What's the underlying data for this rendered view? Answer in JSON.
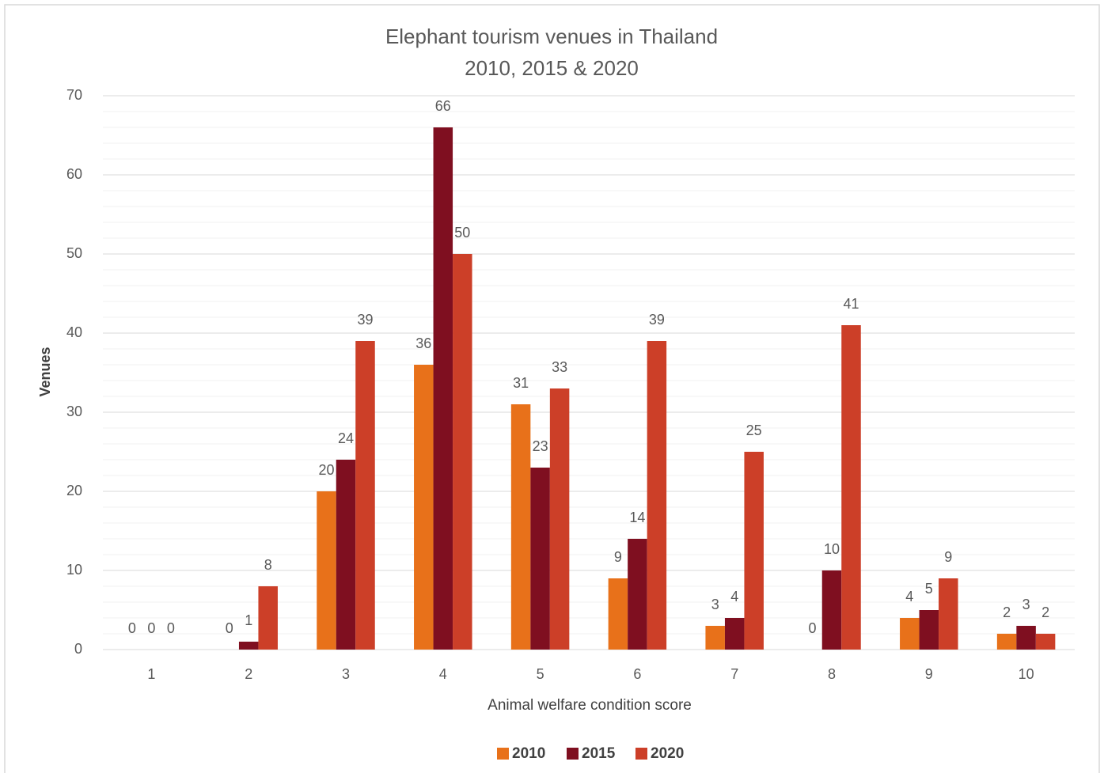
{
  "chart_data": {
    "type": "bar",
    "title": "Elephant tourism venues in Thailand",
    "subtitle": "2010, 2015 & 2020",
    "x_label": "Animal welfare condition score",
    "y_label": "Venues",
    "categories": [
      "1",
      "2",
      "3",
      "4",
      "5",
      "6",
      "7",
      "8",
      "9",
      "10"
    ],
    "series": [
      {
        "name": "2010",
        "color": "#e8711a",
        "values": [
          0,
          0,
          20,
          36,
          31,
          9,
          3,
          0,
          4,
          2
        ]
      },
      {
        "name": "2015",
        "color": "#7f0f20",
        "values": [
          0,
          1,
          24,
          66,
          23,
          14,
          4,
          10,
          5,
          3
        ]
      },
      {
        "name": "2020",
        "color": "#cc3f28",
        "values": [
          0,
          8,
          39,
          50,
          33,
          39,
          25,
          41,
          9,
          2
        ]
      }
    ],
    "ylim": [
      0,
      70
    ],
    "yticks": [
      0,
      10,
      20,
      30,
      40,
      50,
      60,
      70
    ],
    "grid": true,
    "legend": "bottom"
  }
}
